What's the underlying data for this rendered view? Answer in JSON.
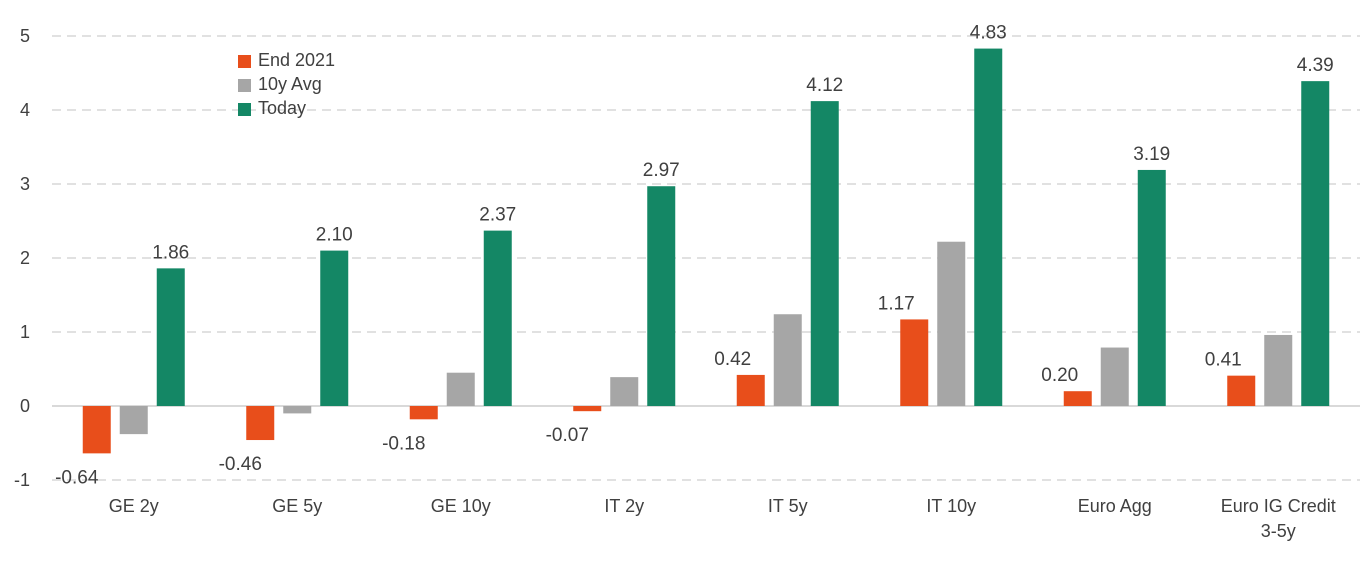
{
  "chart_data": {
    "type": "bar",
    "categories": [
      [
        "GE 2y"
      ],
      [
        "GE 5y"
      ],
      [
        "GE 10y"
      ],
      [
        "IT 2y"
      ],
      [
        "IT 5y"
      ],
      [
        "IT 10y"
      ],
      [
        "Euro Agg"
      ],
      [
        "Euro IG Credit",
        "3-5y"
      ]
    ],
    "series": [
      {
        "name": "End 2021",
        "color": "#E84E1B",
        "values": [
          -0.64,
          -0.46,
          -0.18,
          -0.07,
          0.42,
          1.17,
          0.2,
          0.41
        ],
        "labels": [
          "-0.64",
          "-0.46",
          "-0.18",
          "-0.07",
          "0.42",
          "1.17",
          "0.20",
          "0.41"
        ]
      },
      {
        "name": "10y Avg",
        "color": "#A6A6A6",
        "values": [
          -0.38,
          -0.1,
          0.45,
          0.39,
          1.24,
          2.22,
          0.79,
          0.96
        ],
        "labels": null
      },
      {
        "name": "Today",
        "color": "#148765",
        "values": [
          1.86,
          2.1,
          2.37,
          2.97,
          4.12,
          4.83,
          3.19,
          4.39
        ],
        "labels": [
          "1.86",
          "2.10",
          "2.37",
          "2.97",
          "4.12",
          "4.83",
          "3.19",
          "4.39"
        ]
      }
    ],
    "yticks": [
      "-1",
      "0",
      "1",
      "2",
      "3",
      "4",
      "5"
    ],
    "ylim": [
      -1,
      5
    ],
    "grid": true,
    "legend_position": "top-left",
    "title": "",
    "xlabel": "",
    "ylabel": ""
  }
}
